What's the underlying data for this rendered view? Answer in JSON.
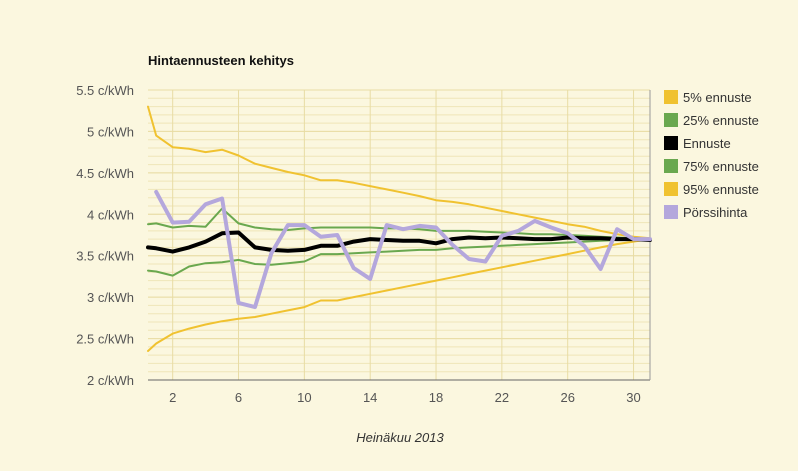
{
  "chart_data": {
    "type": "line",
    "title": "Hintaennusteen kehitys",
    "xlabel": "Heinäkuu 2013",
    "ylabel": "",
    "xlim": [
      0.5,
      31
    ],
    "ylim": [
      2,
      5.5
    ],
    "x_ticks": [
      2,
      6,
      10,
      14,
      18,
      22,
      26,
      30
    ],
    "y_ticks": [
      {
        "value": 2,
        "label": "2 c/kWh"
      },
      {
        "value": 2.5,
        "label": "2.5 c/kWh"
      },
      {
        "value": 3,
        "label": "3 c/kWh"
      },
      {
        "value": 3.5,
        "label": "3.5 c/kWh"
      },
      {
        "value": 4,
        "label": "4 c/kWh"
      },
      {
        "value": 4.5,
        "label": "4.5 c/kWh"
      },
      {
        "value": 5,
        "label": "5 c/kWh"
      },
      {
        "value": 5.5,
        "label": "5.5 c/kWh"
      }
    ],
    "legend_position": "right",
    "series": [
      {
        "name": "5% ennuste",
        "color": "#f0c230",
        "width": 2,
        "x": [
          0.5,
          1,
          2,
          3,
          4,
          5,
          6,
          7,
          8,
          9,
          10,
          11,
          12,
          13,
          14,
          15,
          16,
          17,
          18,
          19,
          20,
          21,
          22,
          23,
          24,
          25,
          26,
          27,
          28,
          29,
          30,
          31
        ],
        "y": [
          5.3,
          4.95,
          4.81,
          4.79,
          4.75,
          4.78,
          4.71,
          4.61,
          4.56,
          4.51,
          4.47,
          4.41,
          4.41,
          4.38,
          4.34,
          4.3,
          4.26,
          4.22,
          4.17,
          4.15,
          4.12,
          4.08,
          4.04,
          4.0,
          3.96,
          3.92,
          3.88,
          3.85,
          3.8,
          3.76,
          3.73,
          3.71
        ]
      },
      {
        "name": "95% ennuste",
        "color": "#f0c230",
        "width": 2,
        "x": [
          0.5,
          1,
          2,
          3,
          4,
          5,
          6,
          7,
          8,
          9,
          10,
          11,
          12,
          13,
          14,
          15,
          16,
          17,
          18,
          19,
          20,
          21,
          22,
          23,
          24,
          25,
          26,
          27,
          28,
          29,
          30,
          31
        ],
        "y": [
          2.35,
          2.44,
          2.56,
          2.62,
          2.67,
          2.71,
          2.74,
          2.76,
          2.8,
          2.84,
          2.88,
          2.96,
          2.96,
          3.0,
          3.04,
          3.08,
          3.12,
          3.16,
          3.2,
          3.24,
          3.28,
          3.32,
          3.36,
          3.4,
          3.44,
          3.48,
          3.52,
          3.56,
          3.6,
          3.64,
          3.67,
          3.7
        ]
      },
      {
        "name": "25% ennuste",
        "color": "#6aa84f",
        "width": 2,
        "x": [
          0.5,
          1,
          2,
          3,
          4,
          5,
          6,
          7,
          8,
          9,
          10,
          11,
          12,
          13,
          14,
          15,
          16,
          17,
          18,
          19,
          20,
          21,
          22,
          23,
          24,
          25,
          26,
          27,
          28,
          29,
          30,
          31
        ],
        "y": [
          3.88,
          3.89,
          3.84,
          3.86,
          3.85,
          4.07,
          3.89,
          3.84,
          3.82,
          3.81,
          3.83,
          3.84,
          3.84,
          3.84,
          3.84,
          3.83,
          3.83,
          3.82,
          3.8,
          3.8,
          3.8,
          3.79,
          3.78,
          3.77,
          3.76,
          3.76,
          3.75,
          3.74,
          3.73,
          3.72,
          3.71,
          3.7
        ]
      },
      {
        "name": "75% ennuste",
        "color": "#6aa84f",
        "width": 2,
        "x": [
          0.5,
          1,
          2,
          3,
          4,
          5,
          6,
          7,
          8,
          9,
          10,
          11,
          12,
          13,
          14,
          15,
          16,
          17,
          18,
          19,
          20,
          21,
          22,
          23,
          24,
          25,
          26,
          27,
          28,
          29,
          30,
          31
        ],
        "y": [
          3.32,
          3.31,
          3.26,
          3.37,
          3.41,
          3.42,
          3.45,
          3.4,
          3.39,
          3.41,
          3.43,
          3.52,
          3.52,
          3.53,
          3.54,
          3.55,
          3.56,
          3.57,
          3.57,
          3.59,
          3.6,
          3.61,
          3.62,
          3.63,
          3.64,
          3.65,
          3.66,
          3.67,
          3.68,
          3.69,
          3.7,
          3.7
        ]
      },
      {
        "name": "Ennuste",
        "color": "#000000",
        "width": 4,
        "x": [
          0.5,
          1,
          2,
          3,
          4,
          5,
          6,
          7,
          8,
          9,
          10,
          11,
          12,
          13,
          14,
          15,
          16,
          17,
          18,
          19,
          20,
          21,
          22,
          23,
          24,
          25,
          26,
          27,
          28,
          29,
          30,
          31
        ],
        "y": [
          3.6,
          3.59,
          3.55,
          3.6,
          3.67,
          3.77,
          3.78,
          3.6,
          3.57,
          3.56,
          3.57,
          3.62,
          3.62,
          3.67,
          3.7,
          3.69,
          3.68,
          3.68,
          3.65,
          3.7,
          3.72,
          3.71,
          3.72,
          3.71,
          3.7,
          3.7,
          3.72,
          3.71,
          3.71,
          3.7,
          3.7,
          3.69
        ]
      },
      {
        "name": "Pörssihinta",
        "color": "#b4a7dc",
        "width": 4,
        "x": [
          1,
          2,
          3,
          4,
          5,
          6,
          7,
          8,
          9,
          10,
          11,
          12,
          13,
          14,
          15,
          16,
          17,
          18,
          19,
          20,
          21,
          22,
          23,
          24,
          25,
          26,
          27,
          28,
          29,
          30,
          31
        ],
        "y": [
          4.27,
          3.9,
          3.91,
          4.12,
          4.19,
          2.93,
          2.88,
          3.53,
          3.87,
          3.87,
          3.73,
          3.75,
          3.35,
          3.22,
          3.87,
          3.82,
          3.86,
          3.84,
          3.63,
          3.46,
          3.43,
          3.74,
          3.8,
          3.92,
          3.84,
          3.77,
          3.62,
          3.34,
          3.82,
          3.7,
          3.7
        ]
      }
    ],
    "legend": [
      {
        "label": "5% ennuste",
        "color": "#f0c230"
      },
      {
        "label": "25% ennuste",
        "color": "#6aa84f"
      },
      {
        "label": "Ennuste",
        "color": "#000000"
      },
      {
        "label": "75% ennuste",
        "color": "#6aa84f"
      },
      {
        "label": "95% ennuste",
        "color": "#f0c230"
      },
      {
        "label": "Pörssihinta",
        "color": "#b4a7dc"
      }
    ]
  }
}
